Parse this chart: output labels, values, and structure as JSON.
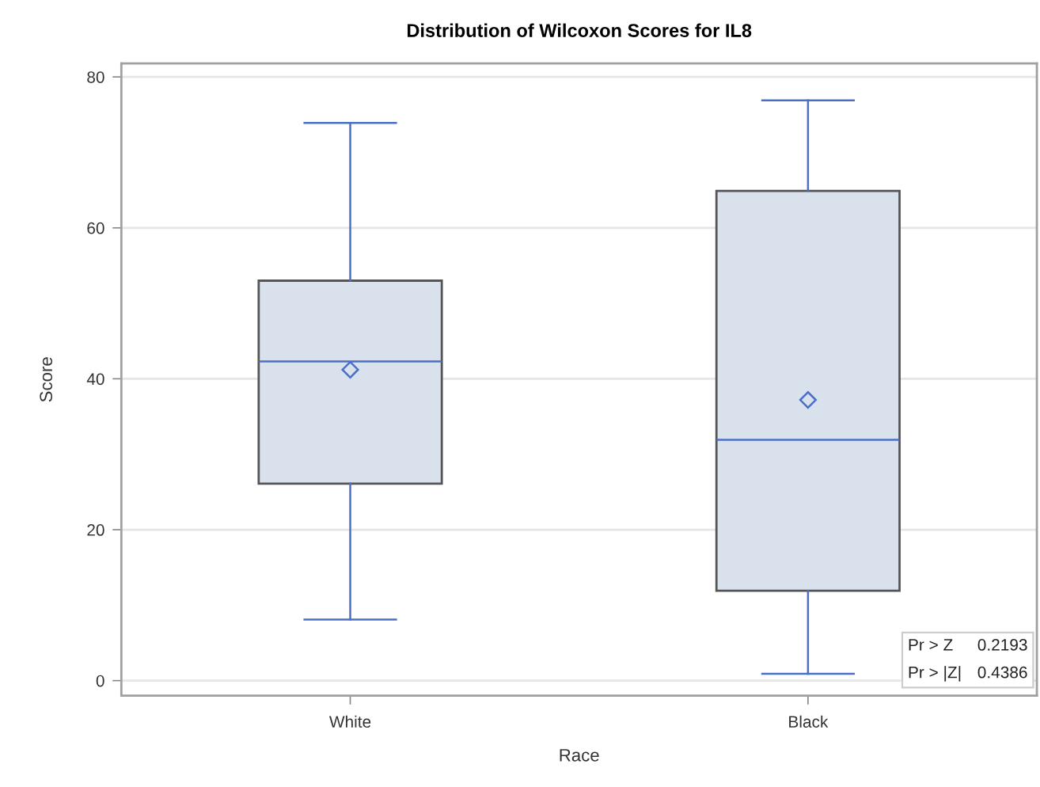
{
  "chart_data": {
    "type": "box",
    "title": "Distribution of Wilcoxon Scores for IL8",
    "xlabel": "Race",
    "ylabel": "Score",
    "categories": [
      "White",
      "Black"
    ],
    "series": [
      {
        "color": "#d9e1ec",
        "boxes": [
          {
            "low": 8.1,
            "q1": 26.1,
            "median": 42.3,
            "q3": 53,
            "high": 73.9,
            "mean": 41.2
          },
          {
            "low": 0.9,
            "q1": 11.9,
            "median": 31.9,
            "q3": 64.9,
            "high": 76.9,
            "mean": 37.2
          }
        ]
      }
    ],
    "ylim": [
      -2,
      81.8
    ],
    "yticks": [
      0,
      20,
      40,
      60,
      80
    ],
    "grid": "y",
    "marker": "diamond",
    "annotations": [
      "Pr > Z",
      "0.2193",
      "Pr > |Z|",
      "0.4386"
    ]
  }
}
